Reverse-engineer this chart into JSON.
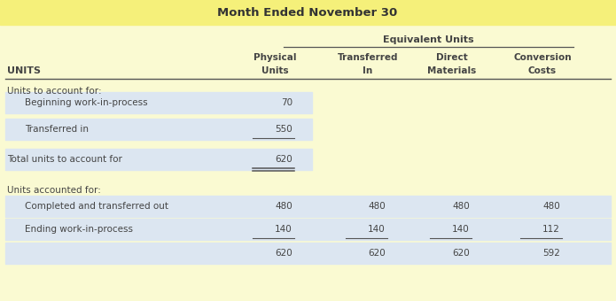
{
  "title": "Month Ended November 30",
  "title_bg": "#f5f07a",
  "bg_color": "#fafad2",
  "header1": "Equivalent Units",
  "col_headers_line1": [
    "Physical",
    "Transferred",
    "Direct",
    "Conversion"
  ],
  "col_headers_line2": [
    "Units",
    "In",
    "Materials",
    "Costs"
  ],
  "units_label": "UNITS",
  "section1_label": "Units to account for:",
  "section1_rows": [
    {
      "label": "Beginning work-in-process",
      "values": [
        "70",
        "",
        "",
        ""
      ]
    },
    {
      "label": "Transferred in",
      "values": [
        "550",
        "",
        "",
        ""
      ]
    }
  ],
  "section1_total_label": "Total units to account for",
  "section1_total_values": [
    "620",
    "",
    "",
    ""
  ],
  "section2_label": "Units accounted for:",
  "section2_rows": [
    {
      "label": "Completed and transferred out",
      "values": [
        "480",
        "480",
        "480",
        "480"
      ]
    },
    {
      "label": "Ending work-in-process",
      "values": [
        "140",
        "140",
        "140",
        "112"
      ]
    }
  ],
  "section2_total_values": [
    "620",
    "620",
    "620",
    "592"
  ],
  "shaded_color": "#dce6f1",
  "text_color": "#444444",
  "title_text_color": "#333333"
}
